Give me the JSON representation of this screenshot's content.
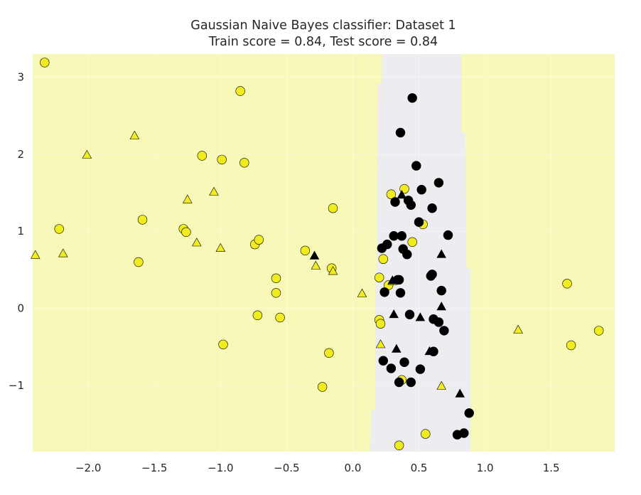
{
  "chart_data": {
    "type": "scatter",
    "title": "Gaussian Naive Bayes classifier: Dataset 1",
    "subtitle": "Train score = 0.84, Test score = 0.84",
    "xlabel": "",
    "ylabel": "",
    "xlim": [
      -2.42,
      1.98
    ],
    "ylim": [
      -1.86,
      3.3
    ],
    "x_ticks": [
      -2.0,
      -1.5,
      -1.0,
      -0.5,
      0.0,
      0.5,
      1.0,
      1.5
    ],
    "x_tick_labels": [
      "−2.0",
      "−1.5",
      "−1.0",
      "−0.5",
      "0.0",
      "0.5",
      "1.0",
      "1.5"
    ],
    "y_ticks": [
      -1,
      0,
      1,
      2,
      3
    ],
    "y_tick_labels": [
      "−1",
      "0",
      "1",
      "2",
      "3"
    ],
    "grid": true,
    "legend": "none",
    "colors": {
      "region_class_0": "#f8f8b8",
      "region_class_1": "#ececf1",
      "point_class_0": "#f1ec1d",
      "point_class_1": "#000000",
      "grid": "#ffffff",
      "text": "#262626"
    },
    "decision_region_class_1": [
      [
        0.13,
        -1.86
      ],
      [
        0.14,
        -1.32
      ],
      [
        0.17,
        -1.32
      ],
      [
        0.17,
        0.48
      ],
      [
        0.18,
        0.48
      ],
      [
        0.19,
        2.92
      ],
      [
        0.22,
        2.92
      ],
      [
        0.22,
        3.3
      ],
      [
        0.82,
        3.3
      ],
      [
        0.82,
        2.28
      ],
      [
        0.85,
        2.28
      ],
      [
        0.86,
        0.52
      ],
      [
        0.89,
        0.52
      ],
      [
        0.89,
        -1.86
      ]
    ],
    "series": [
      {
        "set": "train",
        "class": 0,
        "marker": "circle",
        "points": [
          [
            -2.33,
            3.19
          ],
          [
            -2.22,
            1.03
          ],
          [
            -1.62,
            0.6
          ],
          [
            -1.59,
            1.15
          ],
          [
            -1.28,
            1.03
          ],
          [
            -1.26,
            0.99
          ],
          [
            -1.14,
            1.98
          ],
          [
            -0.99,
            1.93
          ],
          [
            -0.98,
            -0.47
          ],
          [
            -0.85,
            2.82
          ],
          [
            -0.82,
            1.89
          ],
          [
            -0.74,
            0.83
          ],
          [
            -0.71,
            0.89
          ],
          [
            -0.72,
            -0.09
          ],
          [
            -0.58,
            0.39
          ],
          [
            -0.58,
            0.2
          ],
          [
            -0.55,
            -0.12
          ],
          [
            -0.36,
            0.75
          ],
          [
            -0.23,
            -1.02
          ],
          [
            -0.18,
            -0.58
          ],
          [
            -0.16,
            0.52
          ],
          [
            -0.15,
            1.3
          ],
          [
            0.2,
            0.4
          ],
          [
            0.2,
            -0.15
          ],
          [
            0.21,
            -0.2
          ],
          [
            0.23,
            0.64
          ],
          [
            0.27,
            0.3
          ],
          [
            0.29,
            1.48
          ],
          [
            0.35,
            -1.78
          ],
          [
            0.37,
            -0.93
          ],
          [
            0.39,
            1.55
          ],
          [
            0.45,
            0.86
          ],
          [
            0.53,
            1.09
          ],
          [
            0.55,
            -1.63
          ],
          [
            1.62,
            0.32
          ],
          [
            1.65,
            -0.48
          ],
          [
            1.86,
            -0.29
          ]
        ]
      },
      {
        "set": "train",
        "class": 1,
        "marker": "circle",
        "points": [
          [
            0.22,
            0.78
          ],
          [
            0.23,
            -0.68
          ],
          [
            0.24,
            0.21
          ],
          [
            0.26,
            0.83
          ],
          [
            0.29,
            -0.78
          ],
          [
            0.31,
            0.94
          ],
          [
            0.32,
            1.38
          ],
          [
            0.34,
            0.37
          ],
          [
            0.35,
            0.37
          ],
          [
            0.35,
            -0.96
          ],
          [
            0.36,
            2.28
          ],
          [
            0.36,
            0.2
          ],
          [
            0.37,
            0.94
          ],
          [
            0.38,
            0.77
          ],
          [
            0.39,
            -0.7
          ],
          [
            0.41,
            0.7
          ],
          [
            0.42,
            1.4
          ],
          [
            0.43,
            -0.08
          ],
          [
            0.44,
            1.34
          ],
          [
            0.44,
            -0.96
          ],
          [
            0.45,
            2.73
          ],
          [
            0.48,
            1.85
          ],
          [
            0.5,
            1.12
          ],
          [
            0.51,
            -0.79
          ],
          [
            0.52,
            1.54
          ],
          [
            0.59,
            0.42
          ],
          [
            0.6,
            0.44
          ],
          [
            0.6,
            1.3
          ],
          [
            0.61,
            -0.14
          ],
          [
            0.61,
            -0.56
          ],
          [
            0.65,
            1.63
          ],
          [
            0.65,
            -0.18
          ],
          [
            0.67,
            0.23
          ],
          [
            0.69,
            -0.29
          ],
          [
            0.72,
            0.95
          ],
          [
            0.79,
            -1.64
          ],
          [
            0.84,
            -1.62
          ],
          [
            0.88,
            -1.36
          ]
        ]
      },
      {
        "set": "test",
        "class": 0,
        "marker": "triangle",
        "points": [
          [
            -2.4,
            0.69
          ],
          [
            -2.19,
            0.71
          ],
          [
            -2.01,
            1.99
          ],
          [
            -1.65,
            2.24
          ],
          [
            -1.25,
            1.41
          ],
          [
            -1.18,
            0.85
          ],
          [
            -1.05,
            1.51
          ],
          [
            -1.0,
            0.78
          ],
          [
            -0.28,
            0.55
          ],
          [
            -0.15,
            0.48
          ],
          [
            0.07,
            0.19
          ],
          [
            0.21,
            -0.47
          ],
          [
            0.3,
            0.35
          ],
          [
            0.67,
            -1.01
          ],
          [
            1.25,
            -0.28
          ]
        ]
      },
      {
        "set": "test",
        "class": 1,
        "marker": "triangle",
        "points": [
          [
            -0.29,
            0.68
          ],
          [
            0.3,
            0.36
          ],
          [
            0.31,
            -0.08
          ],
          [
            0.33,
            -0.53
          ],
          [
            0.37,
            1.47
          ],
          [
            0.51,
            -0.12
          ],
          [
            0.58,
            -0.56
          ],
          [
            0.67,
            0.02
          ],
          [
            0.67,
            0.7
          ],
          [
            0.81,
            -1.11
          ]
        ]
      }
    ]
  }
}
